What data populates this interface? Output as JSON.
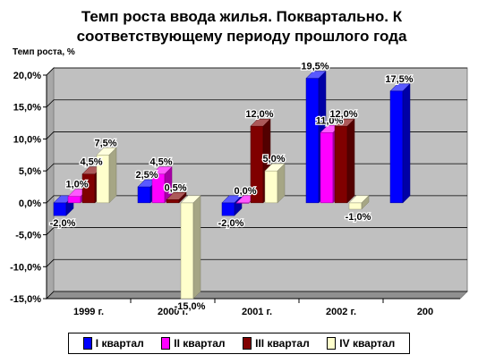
{
  "chart_data": {
    "type": "bar",
    "title": "Темп роста ввода жилья. Поквартально. К соответствующему периоду прошлого года",
    "ylabel": "Темп роста, %",
    "xlabel": "",
    "ylim": [
      -15,
      20
    ],
    "yticks": [
      "-15,0%",
      "-10,0%",
      "-5,0%",
      "0,0%",
      "5,0%",
      "10,0%",
      "15,0%",
      "20,0%"
    ],
    "categories": [
      "1999 г.",
      "2000 г.",
      "2001 г.",
      "2002 г.",
      "200"
    ],
    "grid": true,
    "legend_position": "bottom",
    "series": [
      {
        "name": "I квартал",
        "color": "#0000ff",
        "values": [
          -2.0,
          2.5,
          -2.0,
          19.5,
          17.5
        ],
        "labels": [
          "-2,0%",
          "2,5%",
          "-2,0%",
          "19,5%",
          "17,5%"
        ]
      },
      {
        "name": "II квартал",
        "color": "#ff00ff",
        "values": [
          1.0,
          4.5,
          0.0,
          11.0,
          null
        ],
        "labels": [
          "1,0%",
          "4,5%",
          "0,0%",
          "11,0%",
          ""
        ]
      },
      {
        "name": "III квартал",
        "color": "#800000",
        "values": [
          4.5,
          0.5,
          12.0,
          12.0,
          null
        ],
        "labels": [
          "4,5%",
          "0,5%",
          "12,0%",
          "12,0%",
          ""
        ]
      },
      {
        "name": "IV квартал",
        "color": "#ffffcc",
        "values": [
          7.5,
          -15.0,
          5.0,
          -1.0,
          null
        ],
        "labels": [
          "7,5%",
          "-15,0%",
          "5,0%",
          "-1,0%",
          ""
        ]
      }
    ]
  }
}
